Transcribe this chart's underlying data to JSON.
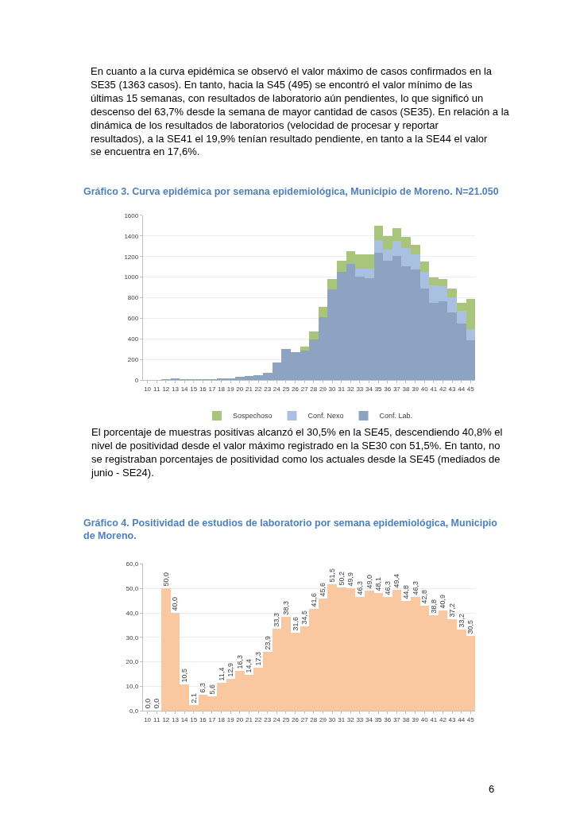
{
  "chart_data": [
    {
      "type": "bar",
      "title": "Gráfico 3. Curva epidémica por semana epidemiológica, Municipio de Moreno. N=21.050",
      "categories": [
        "10",
        "11",
        "12",
        "13",
        "14",
        "15",
        "16",
        "17",
        "18",
        "19",
        "20",
        "21",
        "22",
        "23",
        "24",
        "25",
        "26",
        "27",
        "28",
        "29",
        "30",
        "31",
        "32",
        "33",
        "34",
        "35",
        "36",
        "37",
        "38",
        "39",
        "40",
        "41",
        "42",
        "43",
        "44",
        "45"
      ],
      "stacked": true,
      "series": [
        {
          "name": "Conf. Lab.",
          "color": "#8ea3c2",
          "values": [
            0,
            0,
            10,
            15,
            10,
            3,
            8,
            8,
            15,
            18,
            28,
            40,
            48,
            68,
            168,
            305,
            270,
            285,
            397,
            608,
            880,
            1053,
            1130,
            1008,
            990,
            1239,
            1163,
            1204,
            1104,
            1074,
            888,
            751,
            768,
            659,
            550,
            387
          ]
        },
        {
          "name": "Conf. Nexo",
          "color": "#aac0e0",
          "values": [
            0,
            0,
            0,
            0,
            0,
            0,
            0,
            0,
            0,
            0,
            0,
            0,
            0,
            0,
            0,
            0,
            0,
            0,
            0,
            0,
            0,
            0,
            0,
            71,
            89,
            120,
            107,
            150,
            178,
            145,
            165,
            168,
            145,
            145,
            122,
            109
          ]
        },
        {
          "name": "Sospechoso",
          "color": "#a9c57b",
          "values": [
            0,
            0,
            0,
            0,
            0,
            0,
            0,
            0,
            0,
            0,
            0,
            0,
            0,
            0,
            0,
            0,
            0,
            38,
            76,
            102,
            105,
            107,
            122,
            140,
            145,
            140,
            127,
            119,
            107,
            94,
            102,
            76,
            72,
            84,
            76,
            295
          ]
        }
      ],
      "ylim": [
        0,
        1600
      ],
      "yticks": [
        0,
        200,
        400,
        600,
        800,
        1000,
        1200,
        1400,
        1600
      ],
      "grid": "y",
      "legend": "bottom",
      "annotations": [
        "En cuanto a la curva epidémica se observó el valor máximo de casos confirmados en la SE35 (1363 casos). En tanto, hacia la S45 (495) se encontró el valor mínimo de las últimas 15 semanas, con resultados de laboratorio aún pendientes, lo que significó un descenso del 63,7% desde la semana de mayor cantidad de casos (SE35). En relación a la dinámica de los resultados de laboratorios (velocidad de procesar y reportar resultados), a la SE41 el 19,9% tenían resultado pendiente, en tanto a la SE44 el valor se encuentra en 17,6%."
      ]
    },
    {
      "type": "bar",
      "title": "Gráfico 4. Positividad de estudios de laboratorio por semana epidemiológica, Municipio de Moreno.",
      "categories": [
        "10",
        "11",
        "12",
        "13",
        "14",
        "15",
        "16",
        "17",
        "18",
        "19",
        "20",
        "21",
        "22",
        "23",
        "24",
        "25",
        "26",
        "27",
        "28",
        "29",
        "30",
        "31",
        "32",
        "33",
        "34",
        "35",
        "36",
        "37",
        "38",
        "39",
        "40",
        "41",
        "42",
        "43",
        "44",
        "45"
      ],
      "values": [
        0.0,
        0.0,
        50.0,
        40.0,
        10.5,
        2.1,
        6.3,
        5.6,
        11.4,
        12.9,
        16.3,
        14.4,
        17.3,
        23.9,
        33.3,
        38.3,
        31.6,
        34.5,
        41.6,
        45.6,
        51.5,
        50.2,
        49.9,
        46.3,
        49.0,
        48.1,
        46.3,
        49.4,
        44.8,
        46.3,
        42.8,
        38.8,
        40.9,
        37.2,
        33.2,
        30.5
      ],
      "value_labels": [
        "0,0",
        "0,0",
        "50,0",
        "40,0",
        "10,5",
        "2,1",
        "6,3",
        "5,6",
        "11,4",
        "12,9",
        "16,3",
        "14,4",
        "17,3",
        "23,9",
        "33,3",
        "38,3",
        "31,6",
        "34,5",
        "41,6",
        "45,6",
        "51,5",
        "50,2",
        "49,9",
        "46,3",
        "49,0",
        "48,1",
        "46,3",
        "49,4",
        "44,8",
        "46,3",
        "42,8",
        "38,8",
        "40,9",
        "37,2",
        "33,2",
        "30,5"
      ],
      "color": "#f9c8a0",
      "ylim": [
        0,
        60
      ],
      "yticks": [
        {
          "value": 0,
          "label": "0,0"
        },
        {
          "value": 10,
          "label": "10,0"
        },
        {
          "value": 20,
          "label": "20,0"
        },
        {
          "value": 30,
          "label": "30,0"
        },
        {
          "value": 40,
          "label": "40,0"
        },
        {
          "value": 50,
          "label": "50,0"
        },
        {
          "value": 60,
          "label": "60,0"
        }
      ],
      "grid": "y",
      "annotations": [
        "El porcentaje de muestras positivas alcanzó el 30,5% en la SE45, descendiendo 40,8% el nivel de positividad desde el valor máximo registrado en la SE30 con 51,5%. En tanto, no se registraban porcentajes de positividad como los actuales desde la SE45 (mediados de junio - SE24).",
        "6"
      ]
    }
  ]
}
